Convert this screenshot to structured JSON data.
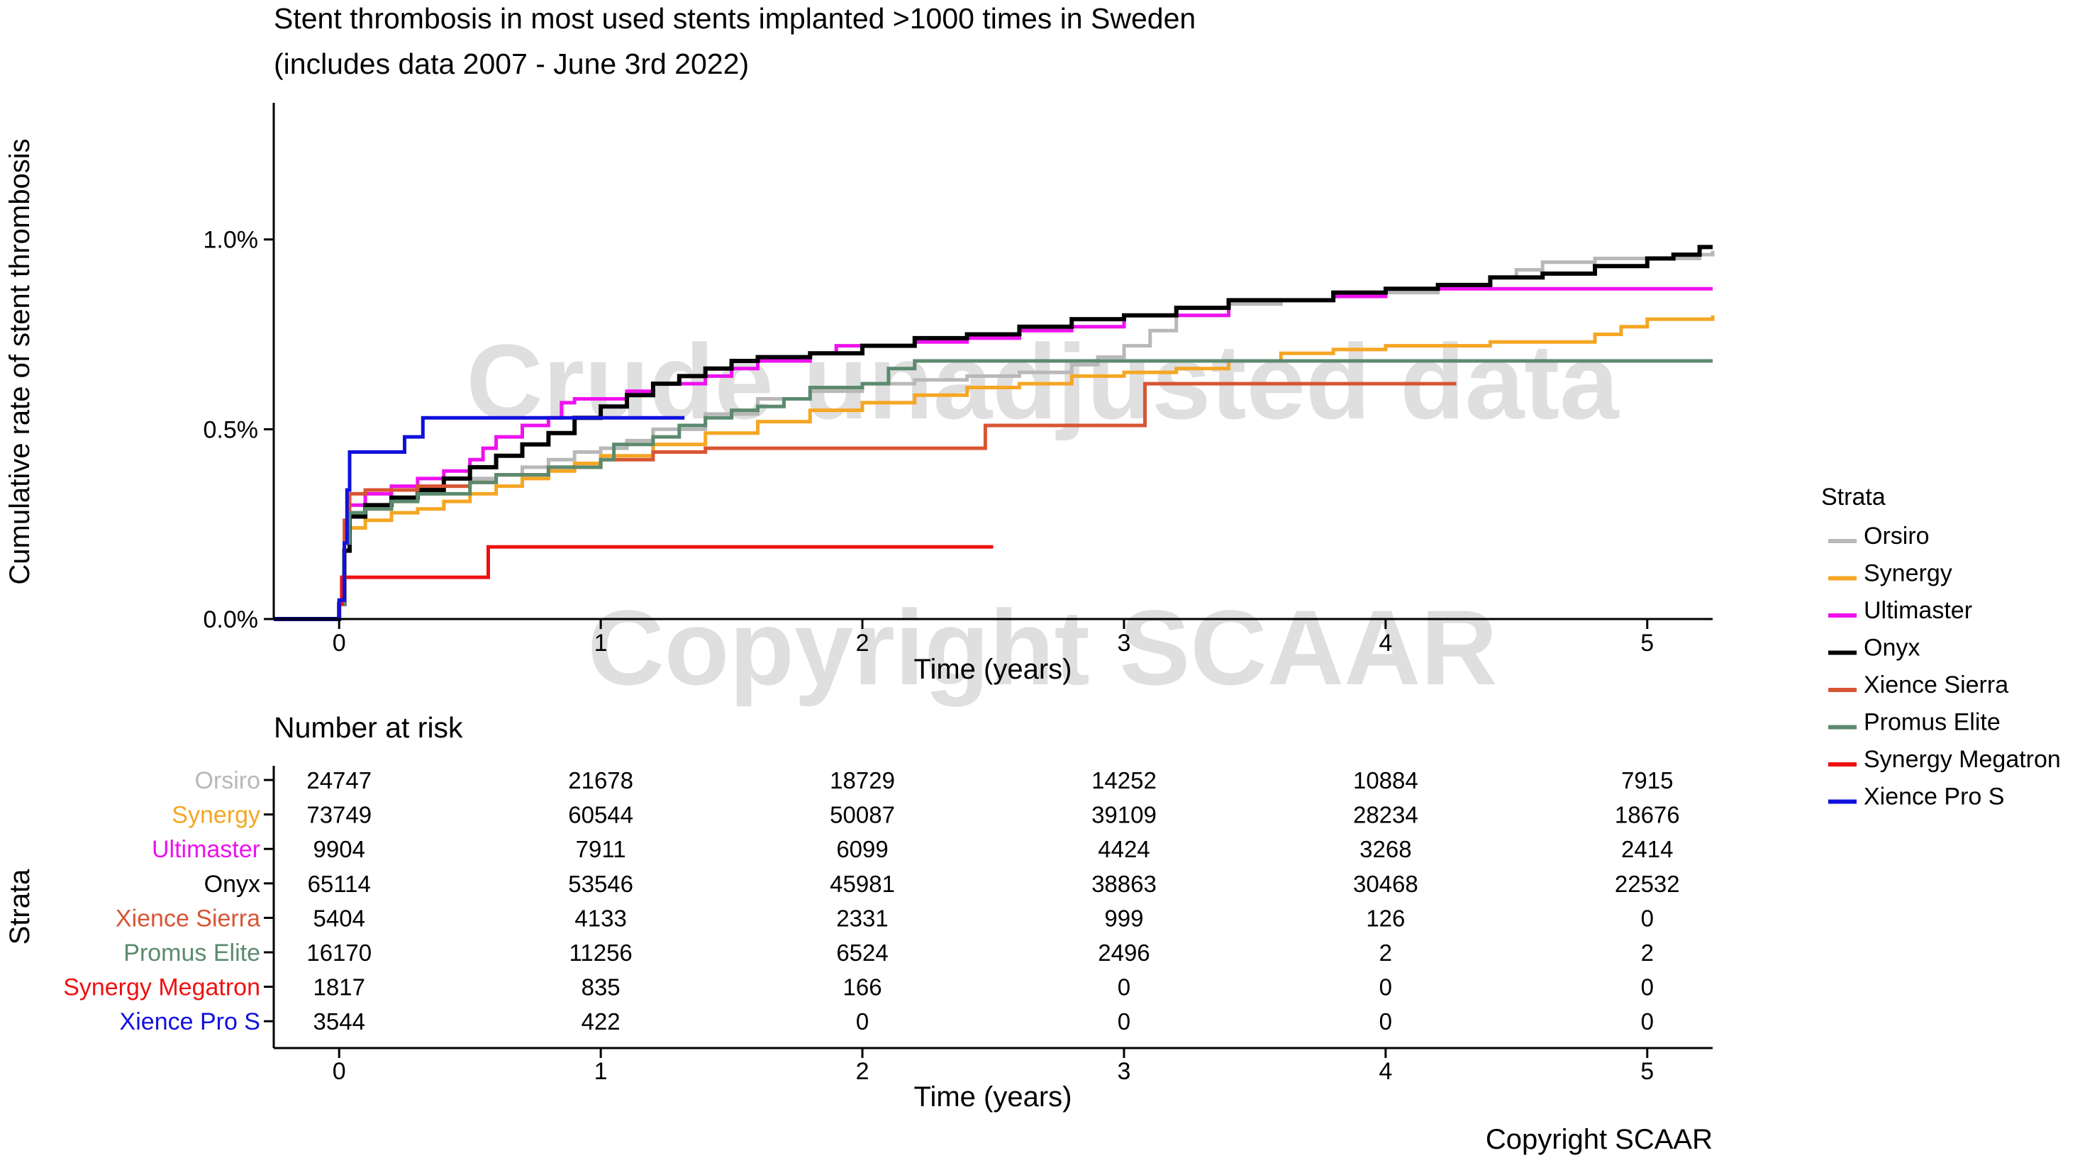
{
  "chart_data": [
    {
      "type": "line",
      "step": true,
      "title": "Stent thrombosis in most used stents implanted >1000 times in Sweden",
      "subtitle": "(includes data 2007 - June 3rd 2022)",
      "xlabel": "Time (years)",
      "ylabel": "Cumulative rate of stent thrombosis",
      "xlim": [
        -0.25,
        5.25
      ],
      "ylim": [
        0,
        1.36
      ],
      "x_ticks": [
        0,
        1,
        2,
        3,
        4,
        5
      ],
      "y_ticks": [
        0,
        0.5,
        1.0
      ],
      "y_tick_labels": [
        "0.0%",
        "0.5%",
        "1.0%"
      ],
      "grid": false,
      "legend": {
        "title": "Strata",
        "position": "right",
        "entries": [
          "Orsiro",
          "Synergy",
          "Ultimaster",
          "Onyx",
          "Xience Sierra",
          "Promus Elite",
          "Synergy Megatron",
          "Xience Pro S"
        ]
      },
      "watermarks": [
        "Crude unadjusted data",
        "Copyright SCAAR"
      ],
      "series": [
        {
          "name": "Orsiro",
          "color": "#b8b8b8",
          "points": [
            [
              -0.25,
              0
            ],
            [
              -0.02,
              0
            ],
            [
              0,
              0.04
            ],
            [
              0.02,
              0.2
            ],
            [
              0.04,
              0.27
            ],
            [
              0.1,
              0.29
            ],
            [
              0.2,
              0.31
            ],
            [
              0.3,
              0.33
            ],
            [
              0.4,
              0.35
            ],
            [
              0.5,
              0.37
            ],
            [
              0.6,
              0.38
            ],
            [
              0.7,
              0.4
            ],
            [
              0.8,
              0.42
            ],
            [
              0.9,
              0.44
            ],
            [
              1.0,
              0.45
            ],
            [
              1.1,
              0.47
            ],
            [
              1.2,
              0.5
            ],
            [
              1.4,
              0.54
            ],
            [
              1.6,
              0.58
            ],
            [
              1.8,
              0.6
            ],
            [
              2.0,
              0.62
            ],
            [
              2.2,
              0.63
            ],
            [
              2.4,
              0.64
            ],
            [
              2.6,
              0.65
            ],
            [
              2.8,
              0.67
            ],
            [
              2.9,
              0.69
            ],
            [
              3.0,
              0.72
            ],
            [
              3.1,
              0.76
            ],
            [
              3.2,
              0.8
            ],
            [
              3.4,
              0.83
            ],
            [
              3.6,
              0.84
            ],
            [
              3.8,
              0.85
            ],
            [
              4.0,
              0.86
            ],
            [
              4.2,
              0.88
            ],
            [
              4.4,
              0.9
            ],
            [
              4.5,
              0.92
            ],
            [
              4.6,
              0.94
            ],
            [
              4.8,
              0.95
            ],
            [
              5.0,
              0.95
            ],
            [
              5.2,
              0.96
            ],
            [
              5.25,
              0.97
            ]
          ]
        },
        {
          "name": "Synergy",
          "color": "#f5a623",
          "points": [
            [
              -0.25,
              0
            ],
            [
              -0.02,
              0
            ],
            [
              0,
              0.04
            ],
            [
              0.02,
              0.18
            ],
            [
              0.04,
              0.24
            ],
            [
              0.1,
              0.26
            ],
            [
              0.2,
              0.28
            ],
            [
              0.3,
              0.29
            ],
            [
              0.4,
              0.31
            ],
            [
              0.5,
              0.33
            ],
            [
              0.6,
              0.35
            ],
            [
              0.7,
              0.37
            ],
            [
              0.8,
              0.39
            ],
            [
              0.9,
              0.41
            ],
            [
              1.0,
              0.43
            ],
            [
              1.2,
              0.46
            ],
            [
              1.4,
              0.49
            ],
            [
              1.6,
              0.52
            ],
            [
              1.8,
              0.55
            ],
            [
              2.0,
              0.57
            ],
            [
              2.2,
              0.59
            ],
            [
              2.4,
              0.61
            ],
            [
              2.6,
              0.62
            ],
            [
              2.8,
              0.64
            ],
            [
              3.0,
              0.65
            ],
            [
              3.2,
              0.66
            ],
            [
              3.4,
              0.68
            ],
            [
              3.6,
              0.7
            ],
            [
              3.8,
              0.71
            ],
            [
              4.0,
              0.72
            ],
            [
              4.2,
              0.72
            ],
            [
              4.4,
              0.73
            ],
            [
              4.6,
              0.73
            ],
            [
              4.8,
              0.75
            ],
            [
              4.9,
              0.77
            ],
            [
              5.0,
              0.79
            ],
            [
              5.25,
              0.8
            ]
          ]
        },
        {
          "name": "Ultimaster",
          "color": "#ee11ee",
          "points": [
            [
              -0.25,
              0
            ],
            [
              -0.02,
              0
            ],
            [
              0,
              0.04
            ],
            [
              0.02,
              0.2
            ],
            [
              0.04,
              0.3
            ],
            [
              0.1,
              0.33
            ],
            [
              0.2,
              0.35
            ],
            [
              0.3,
              0.37
            ],
            [
              0.4,
              0.39
            ],
            [
              0.5,
              0.42
            ],
            [
              0.55,
              0.45
            ],
            [
              0.6,
              0.48
            ],
            [
              0.7,
              0.51
            ],
            [
              0.8,
              0.53
            ],
            [
              0.85,
              0.57
            ],
            [
              0.9,
              0.58
            ],
            [
              1.0,
              0.58
            ],
            [
              1.1,
              0.6
            ],
            [
              1.2,
              0.62
            ],
            [
              1.4,
              0.64
            ],
            [
              1.5,
              0.66
            ],
            [
              1.6,
              0.68
            ],
            [
              1.8,
              0.7
            ],
            [
              1.9,
              0.72
            ],
            [
              2.0,
              0.72
            ],
            [
              2.2,
              0.73
            ],
            [
              2.4,
              0.74
            ],
            [
              2.6,
              0.76
            ],
            [
              2.8,
              0.77
            ],
            [
              3.0,
              0.8
            ],
            [
              3.4,
              0.84
            ],
            [
              3.6,
              0.84
            ],
            [
              3.8,
              0.85
            ],
            [
              4.0,
              0.87
            ],
            [
              4.2,
              0.87
            ],
            [
              4.4,
              0.87
            ],
            [
              4.6,
              0.87
            ],
            [
              5.0,
              0.87
            ],
            [
              5.25,
              0.87
            ]
          ]
        },
        {
          "name": "Onyx",
          "color": "#000000",
          "points": [
            [
              -0.25,
              0
            ],
            [
              -0.02,
              0
            ],
            [
              0,
              0.04
            ],
            [
              0.02,
              0.18
            ],
            [
              0.04,
              0.27
            ],
            [
              0.1,
              0.3
            ],
            [
              0.2,
              0.32
            ],
            [
              0.3,
              0.34
            ],
            [
              0.4,
              0.37
            ],
            [
              0.5,
              0.4
            ],
            [
              0.6,
              0.43
            ],
            [
              0.7,
              0.46
            ],
            [
              0.8,
              0.49
            ],
            [
              0.9,
              0.53
            ],
            [
              1.0,
              0.56
            ],
            [
              1.1,
              0.59
            ],
            [
              1.2,
              0.62
            ],
            [
              1.3,
              0.64
            ],
            [
              1.4,
              0.66
            ],
            [
              1.5,
              0.68
            ],
            [
              1.6,
              0.69
            ],
            [
              1.8,
              0.7
            ],
            [
              2.0,
              0.72
            ],
            [
              2.2,
              0.74
            ],
            [
              2.4,
              0.75
            ],
            [
              2.6,
              0.77
            ],
            [
              2.8,
              0.79
            ],
            [
              3.0,
              0.8
            ],
            [
              3.2,
              0.82
            ],
            [
              3.4,
              0.84
            ],
            [
              3.6,
              0.84
            ],
            [
              3.8,
              0.86
            ],
            [
              4.0,
              0.87
            ],
            [
              4.2,
              0.88
            ],
            [
              4.4,
              0.9
            ],
            [
              4.6,
              0.91
            ],
            [
              4.8,
              0.93
            ],
            [
              5.0,
              0.95
            ],
            [
              5.1,
              0.96
            ],
            [
              5.2,
              0.98
            ],
            [
              5.25,
              0.98
            ]
          ]
        },
        {
          "name": "Xience Sierra",
          "color": "#d85534",
          "points": [
            [
              -0.25,
              0
            ],
            [
              -0.02,
              0
            ],
            [
              0,
              0.04
            ],
            [
              0.02,
              0.26
            ],
            [
              0.04,
              0.33
            ],
            [
              0.1,
              0.34
            ],
            [
              0.3,
              0.35
            ],
            [
              0.5,
              0.36
            ],
            [
              0.6,
              0.38
            ],
            [
              0.8,
              0.4
            ],
            [
              1.0,
              0.42
            ],
            [
              1.2,
              0.44
            ],
            [
              1.4,
              0.45
            ],
            [
              2.0,
              0.45
            ],
            [
              2.47,
              0.45
            ],
            [
              2.47,
              0.51
            ],
            [
              3.08,
              0.51
            ],
            [
              3.08,
              0.62
            ],
            [
              4.27,
              0.62
            ]
          ]
        },
        {
          "name": "Promus Elite",
          "color": "#5c8a6e",
          "points": [
            [
              -0.25,
              0
            ],
            [
              -0.02,
              0
            ],
            [
              0,
              0.04
            ],
            [
              0.02,
              0.2
            ],
            [
              0.04,
              0.28
            ],
            [
              0.1,
              0.29
            ],
            [
              0.2,
              0.31
            ],
            [
              0.3,
              0.33
            ],
            [
              0.5,
              0.36
            ],
            [
              0.6,
              0.38
            ],
            [
              0.8,
              0.4
            ],
            [
              1.0,
              0.42
            ],
            [
              1.05,
              0.46
            ],
            [
              1.2,
              0.48
            ],
            [
              1.3,
              0.51
            ],
            [
              1.4,
              0.53
            ],
            [
              1.5,
              0.55
            ],
            [
              1.6,
              0.56
            ],
            [
              1.7,
              0.58
            ],
            [
              1.8,
              0.61
            ],
            [
              2.0,
              0.62
            ],
            [
              2.1,
              0.66
            ],
            [
              2.2,
              0.68
            ],
            [
              5.25,
              0.68
            ]
          ]
        },
        {
          "name": "Synergy Megatron",
          "color": "#ee1111",
          "points": [
            [
              -0.25,
              0
            ],
            [
              -0.02,
              0
            ],
            [
              0,
              0.04
            ],
            [
              0.01,
              0.11
            ],
            [
              0.57,
              0.11
            ],
            [
              0.57,
              0.19
            ],
            [
              2.5,
              0.19
            ]
          ]
        },
        {
          "name": "Xience Pro S",
          "color": "#1010dd",
          "points": [
            [
              -0.25,
              0
            ],
            [
              -0.02,
              0
            ],
            [
              0,
              0.05
            ],
            [
              0.02,
              0.2
            ],
            [
              0.03,
              0.34
            ],
            [
              0.04,
              0.44
            ],
            [
              0.25,
              0.44
            ],
            [
              0.25,
              0.48
            ],
            [
              0.32,
              0.48
            ],
            [
              0.32,
              0.53
            ],
            [
              1.32,
              0.53
            ]
          ]
        }
      ]
    },
    {
      "type": "table",
      "title": "Number at risk",
      "xlabel": "Time (years)",
      "ylabel": "Strata",
      "x_ticks": [
        0,
        1,
        2,
        3,
        4,
        5
      ],
      "rows": [
        {
          "name": "Orsiro",
          "color": "#b8b8b8",
          "values": [
            24747,
            21678,
            18729,
            14252,
            10884,
            7915
          ]
        },
        {
          "name": "Synergy",
          "color": "#f5a623",
          "values": [
            73749,
            60544,
            50087,
            39109,
            28234,
            18676
          ]
        },
        {
          "name": "Ultimaster",
          "color": "#ee11ee",
          "values": [
            9904,
            7911,
            6099,
            4424,
            3268,
            2414
          ]
        },
        {
          "name": "Onyx",
          "color": "#000000",
          "values": [
            65114,
            53546,
            45981,
            38863,
            30468,
            22532
          ]
        },
        {
          "name": "Xience Sierra",
          "color": "#d85534",
          "values": [
            5404,
            4133,
            2331,
            999,
            126,
            0
          ]
        },
        {
          "name": "Promus Elite",
          "color": "#5c8a6e",
          "values": [
            16170,
            11256,
            6524,
            2496,
            2,
            2
          ]
        },
        {
          "name": "Synergy Megatron",
          "color": "#ee1111",
          "values": [
            1817,
            835,
            166,
            0,
            0,
            0
          ]
        },
        {
          "name": "Xience Pro S",
          "color": "#1010dd",
          "values": [
            3544,
            422,
            0,
            0,
            0,
            0
          ]
        }
      ]
    }
  ],
  "footer": {
    "copyright": "Copyright SCAAR"
  }
}
